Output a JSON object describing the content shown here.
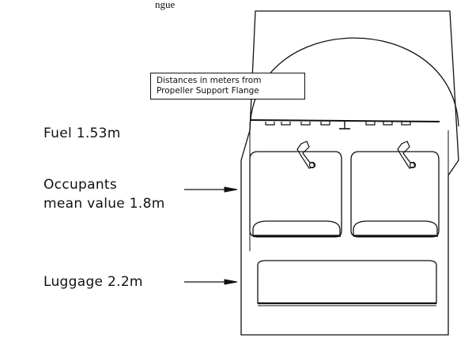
{
  "top_fragment": "ngue",
  "note": {
    "line1": "Distances in meters from",
    "line2": "Propeller Support Flange"
  },
  "labels": {
    "fuel": "Fuel 1.53m",
    "occupants_line1": "Occupants",
    "occupants_line2": "mean value 1.8m",
    "luggage": "Luggage 2.2m"
  },
  "colors": {
    "line": "#111111",
    "background": "#ffffff"
  }
}
